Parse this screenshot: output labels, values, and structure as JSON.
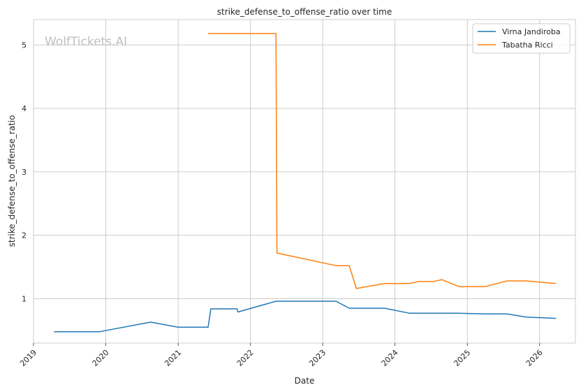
{
  "watermark": "WolfTickets.AI",
  "chart_data": {
    "type": "line",
    "title": "strike_defense_to_offense_ratio over time",
    "xlabel": "Date",
    "ylabel": "strike_defense_to_offense_ratio",
    "x_type": "date",
    "xlim": [
      "2019-01-01",
      "2026-07-01"
    ],
    "ylim": [
      0.3,
      5.4
    ],
    "x_ticks": [
      "2019",
      "2020",
      "2021",
      "2022",
      "2023",
      "2024",
      "2025",
      "2026"
    ],
    "y_ticks": [
      1,
      2,
      3,
      4,
      5
    ],
    "grid": true,
    "legend_position": "top-right",
    "series": [
      {
        "name": "Virna Jandiroba",
        "color": "#1f77b4",
        "x": [
          "2019-04-15",
          "2019-12-01",
          "2020-08-15",
          "2021-01-01",
          "2021-06-01",
          "2021-06-15",
          "2021-10-25",
          "2021-10-30",
          "2022-05-10",
          "2023-03-10",
          "2023-05-15",
          "2023-11-10",
          "2024-03-15",
          "2024-11-15",
          "2025-04-01",
          "2025-07-20",
          "2025-10-25",
          "2026-03-25"
        ],
        "y": [
          0.48,
          0.48,
          0.63,
          0.55,
          0.55,
          0.84,
          0.84,
          0.79,
          0.96,
          0.96,
          0.85,
          0.85,
          0.77,
          0.77,
          0.76,
          0.76,
          0.71,
          0.69
        ]
      },
      {
        "name": "Tabatha Ricci",
        "color": "#ff7f0e",
        "x": [
          "2021-06-01",
          "2022-05-10",
          "2022-05-15",
          "2023-03-10",
          "2023-05-15",
          "2023-06-20",
          "2023-11-10",
          "2024-03-15",
          "2024-05-01",
          "2024-07-15",
          "2024-08-25",
          "2024-11-20",
          "2025-04-01",
          "2025-07-20",
          "2025-10-25",
          "2026-03-25"
        ],
        "y": [
          5.18,
          5.18,
          1.72,
          1.52,
          1.52,
          1.16,
          1.24,
          1.24,
          1.27,
          1.27,
          1.3,
          1.19,
          1.19,
          1.28,
          1.28,
          1.24
        ]
      }
    ]
  }
}
